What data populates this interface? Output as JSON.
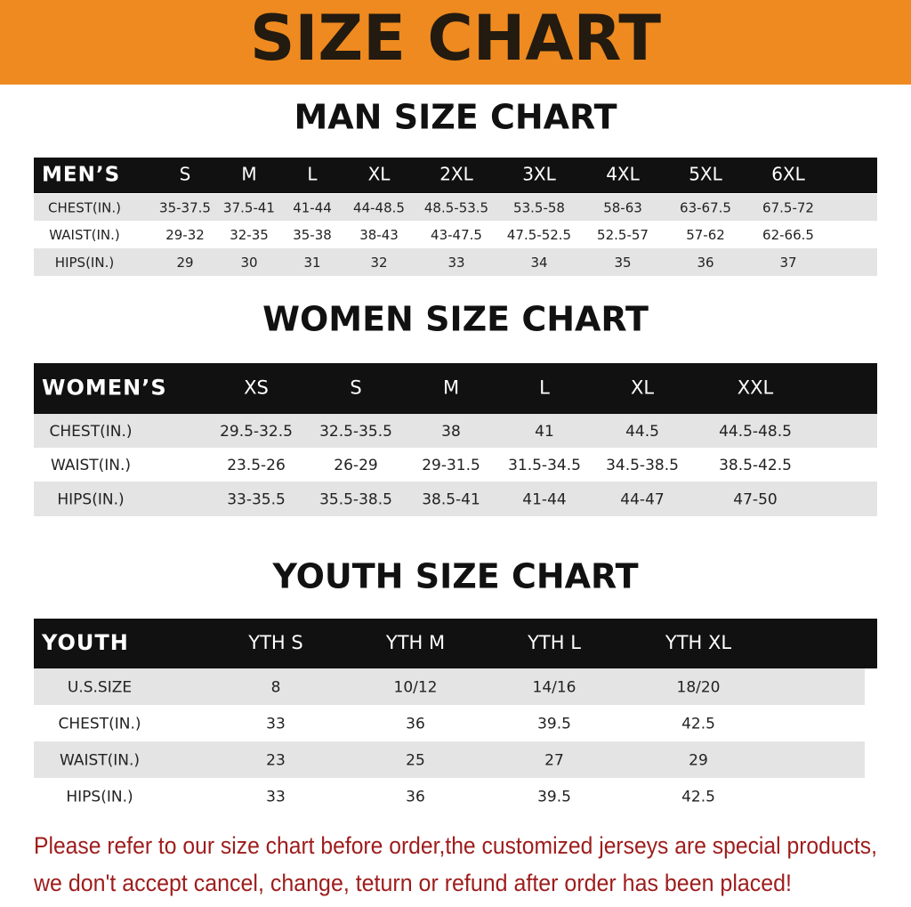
{
  "header": {
    "title": "SIZE CHART"
  },
  "men": {
    "title": "MAN SIZE CHART",
    "header": [
      "MEN’S",
      "S",
      "M",
      "L",
      "XL",
      "2XL",
      "3XL",
      "4XL",
      "5XL",
      "6XL"
    ],
    "rows": [
      [
        "CHEST(IN.)",
        "35-37.5",
        "37.5-41",
        "41-44",
        "44-48.5",
        "48.5-53.5",
        "53.5-58",
        "58-63",
        "63-67.5",
        "67.5-72"
      ],
      [
        "WAIST(IN.)",
        "29-32",
        "32-35",
        "35-38",
        "38-43",
        "43-47.5",
        "47.5-52.5",
        "52.5-57",
        "57-62",
        "62-66.5"
      ],
      [
        "HIPS(IN.)",
        "29",
        "30",
        "31",
        "32",
        "33",
        "34",
        "35",
        "36",
        "37"
      ]
    ]
  },
  "women": {
    "title": "WOMEN SIZE CHART",
    "header": [
      "WOMEN’S",
      "XS",
      "S",
      "M",
      "L",
      "XL",
      "XXL"
    ],
    "rows": [
      [
        "CHEST(IN.)",
        "29.5-32.5",
        "32.5-35.5",
        "38",
        "41",
        "44.5",
        "44.5-48.5"
      ],
      [
        "WAIST(IN.)",
        "23.5-26",
        "26-29",
        "29-31.5",
        "31.5-34.5",
        "34.5-38.5",
        "38.5-42.5"
      ],
      [
        "HIPS(IN.)",
        "33-35.5",
        "35.5-38.5",
        "38.5-41",
        "41-44",
        "44-47",
        "47-50"
      ]
    ]
  },
  "youth": {
    "title": "YOUTH SIZE CHART",
    "header": [
      "YOUTH",
      "YTH S",
      "YTH M",
      "YTH L",
      "YTH XL"
    ],
    "rows": [
      [
        "U.S.SIZE",
        "8",
        "10/12",
        "14/16",
        "18/20"
      ],
      [
        "CHEST(IN.)",
        "33",
        "36",
        "39.5",
        "42.5"
      ],
      [
        "WAIST(IN.)",
        "23",
        "25",
        "27",
        "29"
      ],
      [
        "HIPS(IN.)",
        "33",
        "36",
        "39.5",
        "42.5"
      ]
    ]
  },
  "notice": [
    "Please refer to our size chart before order,the customized jerseys are special products,",
    "we don't accept cancel, change, teturn or refund after order has been placed!"
  ]
}
